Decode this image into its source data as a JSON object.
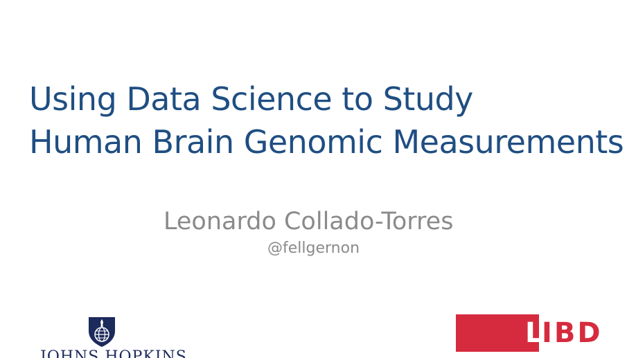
{
  "slide": {
    "title_line_1": "Using Data Science to Study",
    "title_line_2": "Human Brain Genomic Measurements",
    "author": "Leonardo Collado-Torres",
    "handle": "@fellgernon"
  },
  "logos": {
    "jhu": {
      "icon": "jhu-shield-icon",
      "text": "JOHNS HOPKINS",
      "color": "#1c2a5c"
    },
    "libd": {
      "first_letter": "L",
      "rest": "IBD",
      "color": "#d62b3e"
    }
  },
  "colors": {
    "title": "#1f4e82",
    "subtitle": "#8a8a8a",
    "background": "#ffffff"
  }
}
